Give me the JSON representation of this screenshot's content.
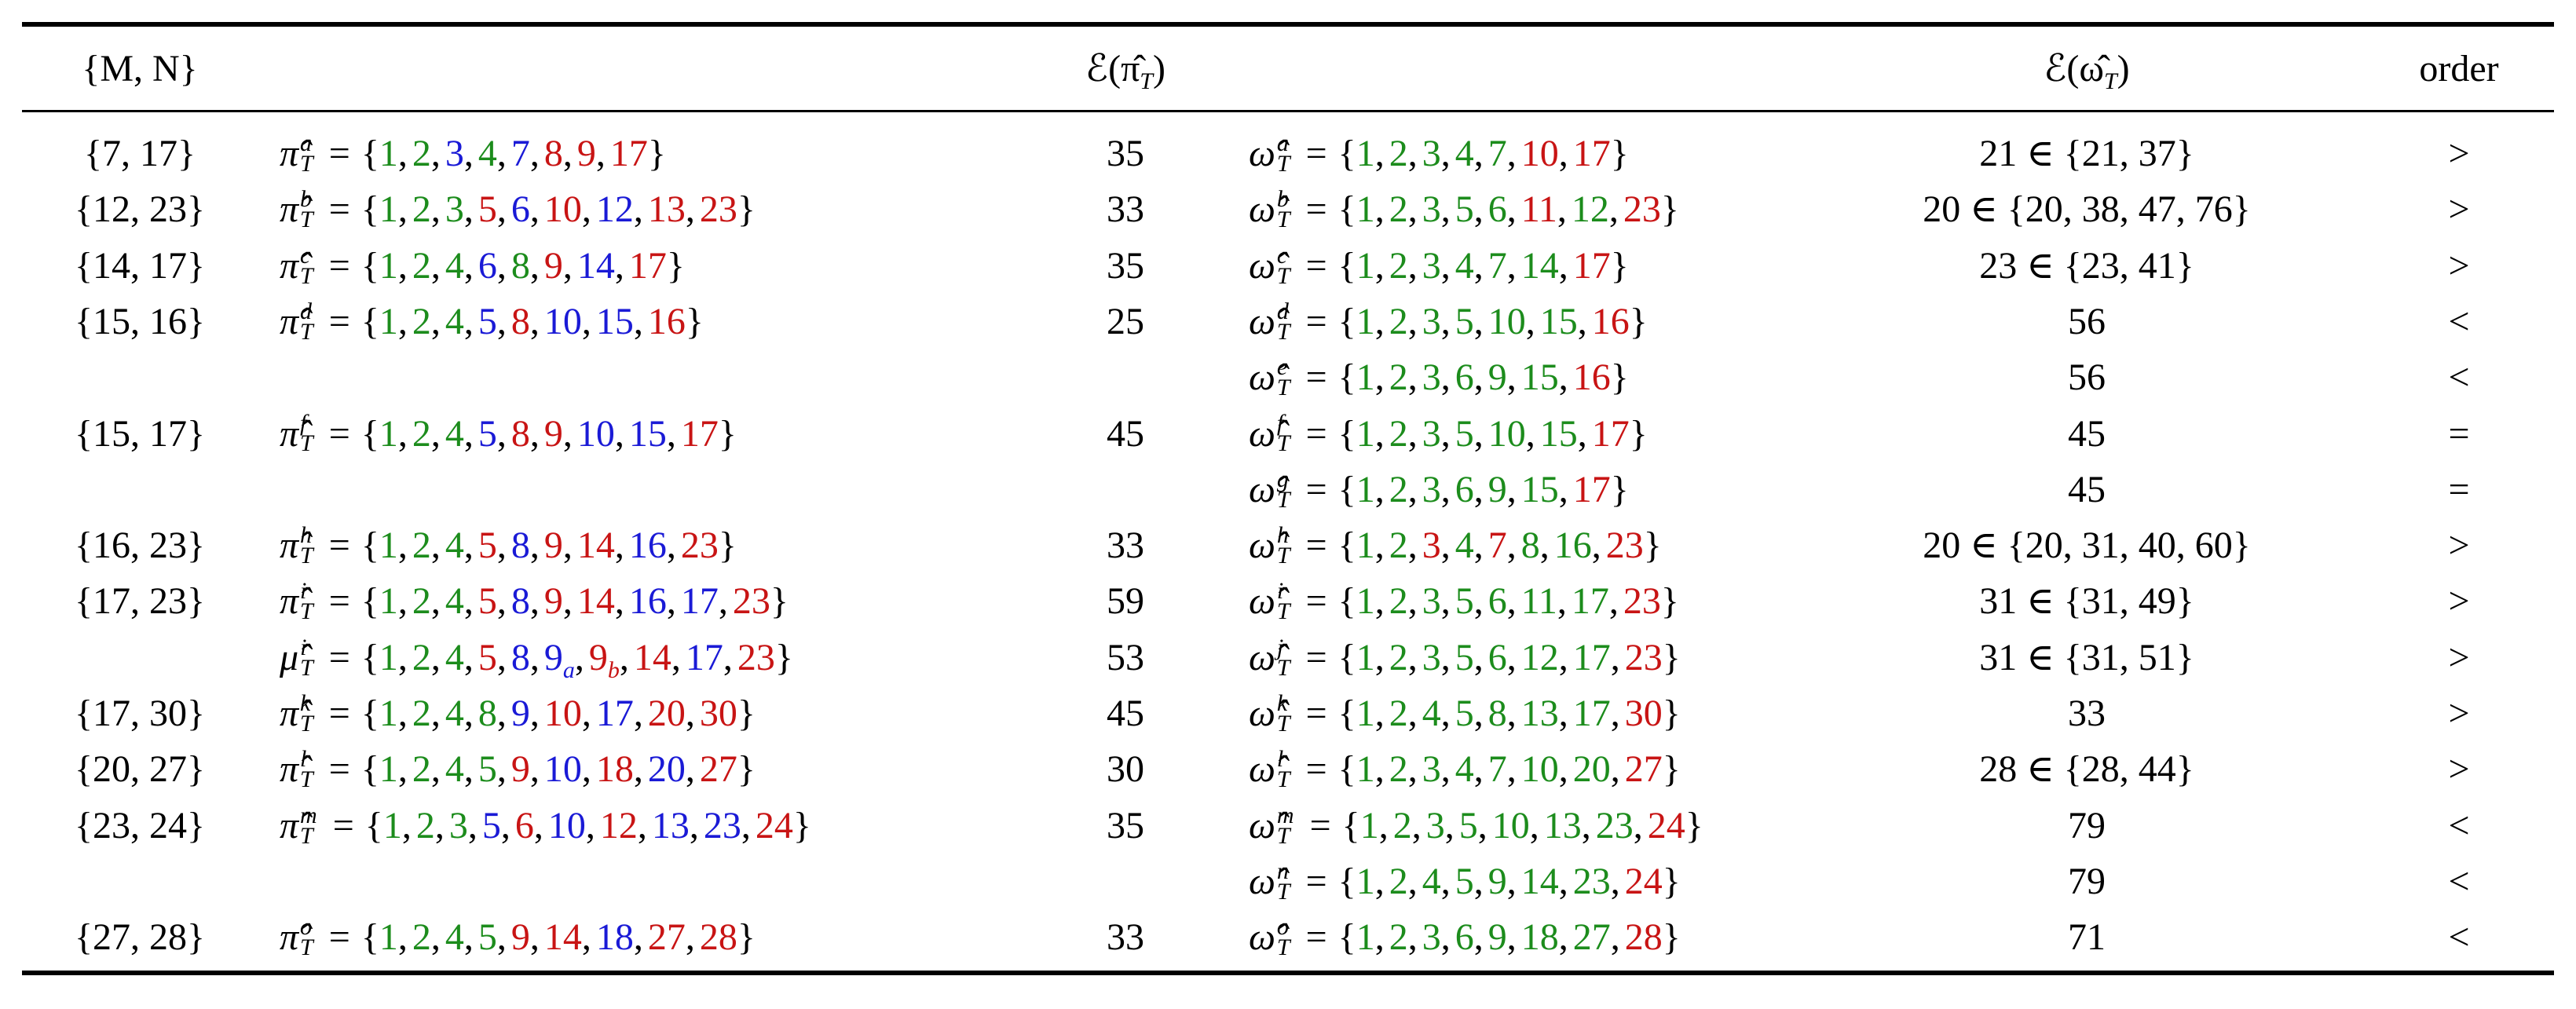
{
  "notation": {
    "eq": "=",
    "open": "{",
    "close": "}",
    "sep": ","
  },
  "colors": {
    "g": "#1c8c1c",
    "b": "#1a1ad6",
    "r": "#c81414"
  },
  "header": {
    "mn": "{M, N}",
    "e_pi": [
      "ℰ(π̂",
      "T",
      ")"
    ],
    "e_omega": [
      "ℰ(ω̂",
      "T",
      ")"
    ],
    "order": "order"
  },
  "rows": [
    {
      "mn": "{7, 17}",
      "pi": {
        "sym": "π̂",
        "sup": "a",
        "sub": "T",
        "elems": [
          [
            1,
            "g"
          ],
          [
            2,
            "g"
          ],
          [
            3,
            "b"
          ],
          [
            4,
            "g"
          ],
          [
            7,
            "b"
          ],
          [
            8,
            "r"
          ],
          [
            9,
            "r"
          ],
          [
            17,
            "r"
          ]
        ]
      },
      "e_pi": 35,
      "omega": {
        "sym": "ω̂",
        "sup": "a",
        "sub": "T",
        "elems": [
          [
            1,
            "g"
          ],
          [
            2,
            "g"
          ],
          [
            3,
            "g"
          ],
          [
            4,
            "g"
          ],
          [
            7,
            "g"
          ],
          [
            10,
            "r"
          ],
          [
            17,
            "r"
          ]
        ]
      },
      "e_omega": "21 ∈ {21, 37}",
      "order": ">"
    },
    {
      "mn": "{12, 23}",
      "pi": {
        "sym": "π̂",
        "sup": "b",
        "sub": "T",
        "elems": [
          [
            1,
            "g"
          ],
          [
            2,
            "g"
          ],
          [
            3,
            "g"
          ],
          [
            5,
            "r"
          ],
          [
            6,
            "b"
          ],
          [
            10,
            "r"
          ],
          [
            12,
            "b"
          ],
          [
            13,
            "r"
          ],
          [
            23,
            "r"
          ]
        ]
      },
      "e_pi": 33,
      "omega": {
        "sym": "ω̂",
        "sup": "b",
        "sub": "T",
        "elems": [
          [
            1,
            "g"
          ],
          [
            2,
            "g"
          ],
          [
            3,
            "g"
          ],
          [
            5,
            "g"
          ],
          [
            6,
            "g"
          ],
          [
            11,
            "r"
          ],
          [
            12,
            "g"
          ],
          [
            23,
            "r"
          ]
        ]
      },
      "e_omega": "20 ∈ {20, 38, 47, 76}",
      "order": ">"
    },
    {
      "mn": "{14, 17}",
      "pi": {
        "sym": "π̂",
        "sup": "c",
        "sub": "T",
        "elems": [
          [
            1,
            "g"
          ],
          [
            2,
            "g"
          ],
          [
            4,
            "g"
          ],
          [
            6,
            "b"
          ],
          [
            8,
            "g"
          ],
          [
            9,
            "r"
          ],
          [
            14,
            "b"
          ],
          [
            17,
            "r"
          ]
        ]
      },
      "e_pi": 35,
      "omega": {
        "sym": "ω̂",
        "sup": "c",
        "sub": "T",
        "elems": [
          [
            1,
            "g"
          ],
          [
            2,
            "g"
          ],
          [
            3,
            "g"
          ],
          [
            4,
            "g"
          ],
          [
            7,
            "g"
          ],
          [
            14,
            "g"
          ],
          [
            17,
            "r"
          ]
        ]
      },
      "e_omega": "23 ∈ {23, 41}",
      "order": ">"
    },
    {
      "mn": "{15, 16}",
      "pi": {
        "sym": "π̂",
        "sup": "d",
        "sub": "T",
        "elems": [
          [
            1,
            "g"
          ],
          [
            2,
            "g"
          ],
          [
            4,
            "g"
          ],
          [
            5,
            "b"
          ],
          [
            8,
            "r"
          ],
          [
            10,
            "b"
          ],
          [
            15,
            "b"
          ],
          [
            16,
            "r"
          ]
        ]
      },
      "e_pi": 25,
      "omega": {
        "sym": "ω̂",
        "sup": "d",
        "sub": "T",
        "elems": [
          [
            1,
            "g"
          ],
          [
            2,
            "g"
          ],
          [
            3,
            "g"
          ],
          [
            5,
            "g"
          ],
          [
            10,
            "g"
          ],
          [
            15,
            "g"
          ],
          [
            16,
            "r"
          ]
        ]
      },
      "e_omega": "56",
      "order": "<"
    },
    {
      "omega": {
        "sym": "ω̂",
        "sup": "e",
        "sub": "T",
        "elems": [
          [
            1,
            "g"
          ],
          [
            2,
            "g"
          ],
          [
            3,
            "g"
          ],
          [
            6,
            "g"
          ],
          [
            9,
            "g"
          ],
          [
            15,
            "g"
          ],
          [
            16,
            "r"
          ]
        ]
      },
      "e_omega": "56",
      "order": "<"
    },
    {
      "mn": "{15, 17}",
      "pi": {
        "sym": "π̂",
        "sup": "f",
        "sub": "T",
        "elems": [
          [
            1,
            "g"
          ],
          [
            2,
            "g"
          ],
          [
            4,
            "g"
          ],
          [
            5,
            "b"
          ],
          [
            8,
            "r"
          ],
          [
            9,
            "r"
          ],
          [
            10,
            "b"
          ],
          [
            15,
            "b"
          ],
          [
            17,
            "r"
          ]
        ]
      },
      "e_pi": 45,
      "omega": {
        "sym": "ω̂",
        "sup": "f",
        "sub": "T",
        "elems": [
          [
            1,
            "g"
          ],
          [
            2,
            "g"
          ],
          [
            3,
            "g"
          ],
          [
            5,
            "g"
          ],
          [
            10,
            "g"
          ],
          [
            15,
            "g"
          ],
          [
            17,
            "r"
          ]
        ]
      },
      "e_omega": "45",
      "order": "="
    },
    {
      "omega": {
        "sym": "ω̂",
        "sup": "g",
        "sub": "T",
        "elems": [
          [
            1,
            "g"
          ],
          [
            2,
            "g"
          ],
          [
            3,
            "g"
          ],
          [
            6,
            "g"
          ],
          [
            9,
            "g"
          ],
          [
            15,
            "g"
          ],
          [
            17,
            "r"
          ]
        ]
      },
      "e_omega": "45",
      "order": "="
    },
    {
      "mn": "{16, 23}",
      "pi": {
        "sym": "π̂",
        "sup": "h",
        "sub": "T",
        "elems": [
          [
            1,
            "g"
          ],
          [
            2,
            "g"
          ],
          [
            4,
            "g"
          ],
          [
            5,
            "r"
          ],
          [
            8,
            "b"
          ],
          [
            9,
            "r"
          ],
          [
            14,
            "r"
          ],
          [
            16,
            "b"
          ],
          [
            23,
            "r"
          ]
        ]
      },
      "e_pi": 33,
      "omega": {
        "sym": "ω̂",
        "sup": "h",
        "sub": "T",
        "elems": [
          [
            1,
            "g"
          ],
          [
            2,
            "g"
          ],
          [
            3,
            "r"
          ],
          [
            4,
            "g"
          ],
          [
            7,
            "r"
          ],
          [
            8,
            "g"
          ],
          [
            16,
            "g"
          ],
          [
            23,
            "r"
          ]
        ]
      },
      "e_omega": "20 ∈ {20, 31, 40, 60}",
      "order": ">"
    },
    {
      "mn": "{17, 23}",
      "pi": {
        "sym": "π̂",
        "sup": "i",
        "sub": "T",
        "elems": [
          [
            1,
            "g"
          ],
          [
            2,
            "g"
          ],
          [
            4,
            "g"
          ],
          [
            5,
            "r"
          ],
          [
            8,
            "b"
          ],
          [
            9,
            "r"
          ],
          [
            14,
            "r"
          ],
          [
            16,
            "b"
          ],
          [
            17,
            "b"
          ],
          [
            23,
            "r"
          ]
        ]
      },
      "e_pi": 59,
      "omega": {
        "sym": "ω̂",
        "sup": "i",
        "sub": "T",
        "elems": [
          [
            1,
            "g"
          ],
          [
            2,
            "g"
          ],
          [
            3,
            "g"
          ],
          [
            5,
            "g"
          ],
          [
            6,
            "g"
          ],
          [
            11,
            "g"
          ],
          [
            17,
            "g"
          ],
          [
            23,
            "r"
          ]
        ]
      },
      "e_omega": "31 ∈ {31, 49}",
      "order": ">"
    },
    {
      "pi": {
        "sym": "μ̂",
        "sup": "i",
        "sub": "T",
        "elems": [
          [
            1,
            "g"
          ],
          [
            2,
            "g"
          ],
          [
            4,
            "g"
          ],
          [
            5,
            "r"
          ],
          [
            8,
            "b"
          ],
          [
            9,
            "b",
            "a"
          ],
          [
            9,
            "r",
            "b"
          ],
          [
            14,
            "r"
          ],
          [
            17,
            "b"
          ],
          [
            23,
            "r"
          ]
        ]
      },
      "e_pi": 53,
      "omega": {
        "sym": "ω̂",
        "sup": "j",
        "sub": "T",
        "elems": [
          [
            1,
            "g"
          ],
          [
            2,
            "g"
          ],
          [
            3,
            "g"
          ],
          [
            5,
            "g"
          ],
          [
            6,
            "g"
          ],
          [
            12,
            "g"
          ],
          [
            17,
            "g"
          ],
          [
            23,
            "r"
          ]
        ]
      },
      "e_omega": "31 ∈ {31, 51}",
      "order": ">"
    },
    {
      "mn": "{17, 30}",
      "pi": {
        "sym": "π̂",
        "sup": "k",
        "sub": "T",
        "elems": [
          [
            1,
            "g"
          ],
          [
            2,
            "g"
          ],
          [
            4,
            "g"
          ],
          [
            8,
            "g"
          ],
          [
            9,
            "b"
          ],
          [
            10,
            "r"
          ],
          [
            17,
            "b"
          ],
          [
            20,
            "r"
          ],
          [
            30,
            "r"
          ]
        ]
      },
      "e_pi": 45,
      "omega": {
        "sym": "ω̂",
        "sup": "k",
        "sub": "T",
        "elems": [
          [
            1,
            "g"
          ],
          [
            2,
            "g"
          ],
          [
            4,
            "g"
          ],
          [
            5,
            "g"
          ],
          [
            8,
            "g"
          ],
          [
            13,
            "g"
          ],
          [
            17,
            "g"
          ],
          [
            30,
            "r"
          ]
        ]
      },
      "e_omega": "33",
      "order": ">"
    },
    {
      "mn": "{20, 27}",
      "pi": {
        "sym": "π̂",
        "sup": "l",
        "sub": "T",
        "elems": [
          [
            1,
            "g"
          ],
          [
            2,
            "g"
          ],
          [
            4,
            "g"
          ],
          [
            5,
            "g"
          ],
          [
            9,
            "r"
          ],
          [
            10,
            "b"
          ],
          [
            18,
            "r"
          ],
          [
            20,
            "b"
          ],
          [
            27,
            "r"
          ]
        ]
      },
      "e_pi": 30,
      "omega": {
        "sym": "ω̂",
        "sup": "l",
        "sub": "T",
        "elems": [
          [
            1,
            "g"
          ],
          [
            2,
            "g"
          ],
          [
            3,
            "g"
          ],
          [
            4,
            "g"
          ],
          [
            7,
            "g"
          ],
          [
            10,
            "g"
          ],
          [
            20,
            "g"
          ],
          [
            27,
            "r"
          ]
        ]
      },
      "e_omega": "28 ∈ {28, 44}",
      "order": ">"
    },
    {
      "mn": "{23, 24}",
      "pi": {
        "sym": "π̂",
        "sup": "m",
        "sub": "T",
        "elems": [
          [
            1,
            "g"
          ],
          [
            2,
            "g"
          ],
          [
            3,
            "g"
          ],
          [
            5,
            "b"
          ],
          [
            6,
            "r"
          ],
          [
            10,
            "b"
          ],
          [
            12,
            "r"
          ],
          [
            13,
            "b"
          ],
          [
            23,
            "b"
          ],
          [
            24,
            "r"
          ]
        ]
      },
      "e_pi": 35,
      "omega": {
        "sym": "ω̂",
        "sup": "m",
        "sub": "T",
        "elems": [
          [
            1,
            "g"
          ],
          [
            2,
            "g"
          ],
          [
            3,
            "g"
          ],
          [
            5,
            "g"
          ],
          [
            10,
            "g"
          ],
          [
            13,
            "g"
          ],
          [
            23,
            "g"
          ],
          [
            24,
            "r"
          ]
        ]
      },
      "e_omega": "79",
      "order": "<"
    },
    {
      "omega": {
        "sym": "ω̂",
        "sup": "n",
        "sub": "T",
        "elems": [
          [
            1,
            "g"
          ],
          [
            2,
            "g"
          ],
          [
            4,
            "g"
          ],
          [
            5,
            "g"
          ],
          [
            9,
            "g"
          ],
          [
            14,
            "g"
          ],
          [
            23,
            "g"
          ],
          [
            24,
            "r"
          ]
        ]
      },
      "e_omega": "79",
      "order": "<"
    },
    {
      "mn": "{27, 28}",
      "pi": {
        "sym": "π̂",
        "sup": "o",
        "sub": "T",
        "elems": [
          [
            1,
            "g"
          ],
          [
            2,
            "g"
          ],
          [
            4,
            "g"
          ],
          [
            5,
            "g"
          ],
          [
            9,
            "r"
          ],
          [
            14,
            "r"
          ],
          [
            18,
            "b"
          ],
          [
            27,
            "r"
          ],
          [
            28,
            "r"
          ]
        ]
      },
      "e_pi": 33,
      "omega": {
        "sym": "ω̂",
        "sup": "o",
        "sub": "T",
        "elems": [
          [
            1,
            "g"
          ],
          [
            2,
            "g"
          ],
          [
            3,
            "g"
          ],
          [
            6,
            "g"
          ],
          [
            9,
            "g"
          ],
          [
            18,
            "g"
          ],
          [
            27,
            "g"
          ],
          [
            28,
            "r"
          ]
        ]
      },
      "e_omega": "71",
      "order": "<"
    }
  ]
}
